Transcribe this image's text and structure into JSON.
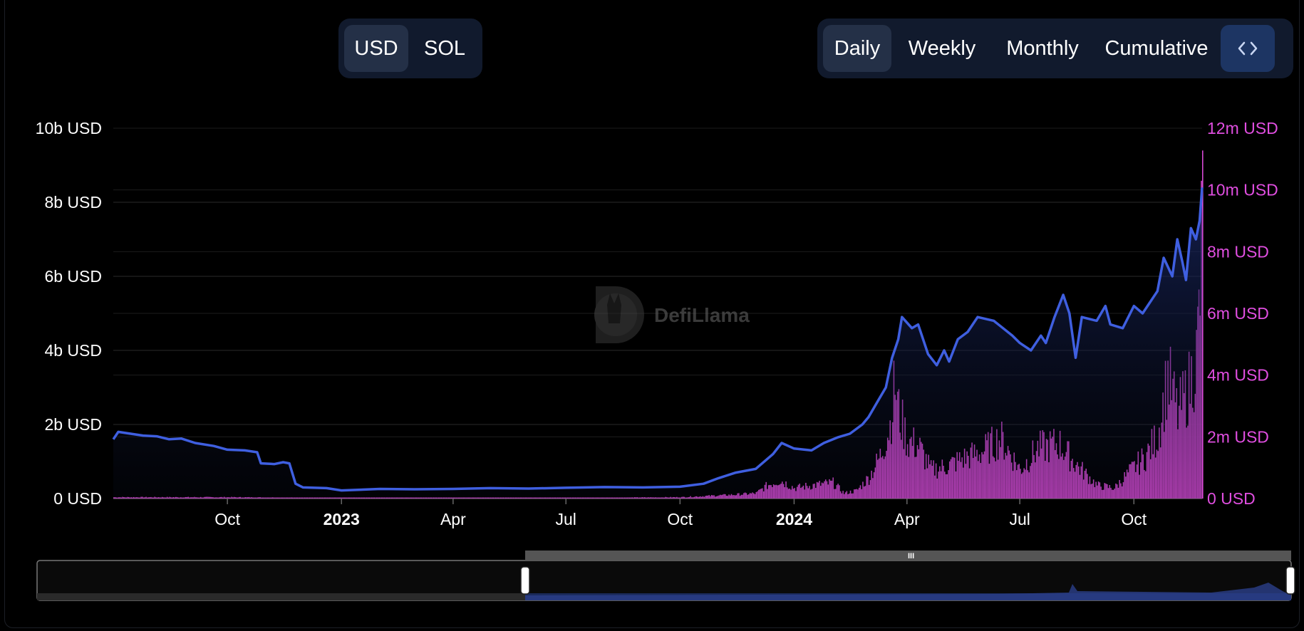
{
  "currency_toggle": {
    "options": [
      {
        "label": "USD",
        "active": true
      },
      {
        "label": "SOL",
        "active": false
      }
    ]
  },
  "period_toggle": {
    "options": [
      {
        "label": "Daily",
        "active": true
      },
      {
        "label": "Weekly",
        "active": false
      },
      {
        "label": "Monthly",
        "active": false
      },
      {
        "label": "Cumulative",
        "active": false
      }
    ],
    "embed_icon": "code-brackets-icon"
  },
  "watermark": "DefiLlama",
  "colors": {
    "background": "#000000",
    "line": "#3f5fe0",
    "bars": "#d94ad6",
    "right_axis": "#e04ee0",
    "grid": "#2a2a2a"
  },
  "chart_data": {
    "type": "line+bar",
    "title": "",
    "left_axis": {
      "ticks": [
        "0 USD",
        "2b USD",
        "4b USD",
        "6b USD",
        "8b USD",
        "10b USD"
      ],
      "ylim": [
        0,
        10000000000
      ],
      "unit": "USD"
    },
    "right_axis": {
      "ticks": [
        "0 USD",
        "2m USD",
        "4m USD",
        "6m USD",
        "8m USD",
        "10m USD",
        "12m USD"
      ],
      "ylim": [
        0,
        12000000
      ],
      "unit": "USD"
    },
    "x_axis": {
      "range": [
        "2022-07-01",
        "2024-11-25"
      ],
      "ticks": [
        {
          "label": "Oct",
          "date": "2022-10-01",
          "bold": false
        },
        {
          "label": "2023",
          "date": "2023-01-01",
          "bold": true
        },
        {
          "label": "Apr",
          "date": "2023-04-01",
          "bold": false
        },
        {
          "label": "Jul",
          "date": "2023-07-01",
          "bold": false
        },
        {
          "label": "Oct",
          "date": "2023-10-01",
          "bold": false
        },
        {
          "label": "2024",
          "date": "2024-01-01",
          "bold": true
        },
        {
          "label": "Apr",
          "date": "2024-04-01",
          "bold": false
        },
        {
          "label": "Jul",
          "date": "2024-07-01",
          "bold": false
        },
        {
          "label": "Oct",
          "date": "2024-10-01",
          "bold": false
        }
      ]
    },
    "grid": true,
    "series": [
      {
        "axis": "left",
        "kind": "line",
        "points": [
          [
            "2022-07-01",
            1600000000.0
          ],
          [
            "2022-07-05",
            1800000000.0
          ],
          [
            "2022-07-15",
            1750000000.0
          ],
          [
            "2022-07-25",
            1700000000.0
          ],
          [
            "2022-08-05",
            1680000000.0
          ],
          [
            "2022-08-15",
            1600000000.0
          ],
          [
            "2022-08-25",
            1620000000.0
          ],
          [
            "2022-09-05",
            1500000000.0
          ],
          [
            "2022-09-20",
            1420000000.0
          ],
          [
            "2022-10-01",
            1320000000.0
          ],
          [
            "2022-10-15",
            1300000000.0
          ],
          [
            "2022-10-25",
            1250000000.0
          ],
          [
            "2022-10-28",
            950000000.0
          ],
          [
            "2022-11-08",
            930000000.0
          ],
          [
            "2022-11-15",
            980000000.0
          ],
          [
            "2022-11-20",
            950000000.0
          ],
          [
            "2022-11-25",
            400000000.0
          ],
          [
            "2022-12-01",
            300000000.0
          ],
          [
            "2022-12-20",
            280000000.0
          ],
          [
            "2023-01-01",
            220000000.0
          ],
          [
            "2023-02-01",
            260000000.0
          ],
          [
            "2023-03-01",
            250000000.0
          ],
          [
            "2023-04-01",
            260000000.0
          ],
          [
            "2023-05-01",
            280000000.0
          ],
          [
            "2023-06-01",
            270000000.0
          ],
          [
            "2023-07-01",
            290000000.0
          ],
          [
            "2023-08-01",
            310000000.0
          ],
          [
            "2023-09-01",
            300000000.0
          ],
          [
            "2023-10-01",
            320000000.0
          ],
          [
            "2023-10-20",
            400000000.0
          ],
          [
            "2023-11-01",
            550000000.0
          ],
          [
            "2023-11-15",
            700000000.0
          ],
          [
            "2023-12-01",
            800000000.0
          ],
          [
            "2023-12-15",
            1200000000.0
          ],
          [
            "2023-12-22",
            1500000000.0
          ],
          [
            "2024-01-01",
            1350000000.0
          ],
          [
            "2024-01-15",
            1300000000.0
          ],
          [
            "2024-01-25",
            1500000000.0
          ],
          [
            "2024-02-05",
            1650000000.0
          ],
          [
            "2024-02-15",
            1750000000.0
          ],
          [
            "2024-02-25",
            2000000000.0
          ],
          [
            "2024-03-01",
            2200000000.0
          ],
          [
            "2024-03-08",
            2600000000.0
          ],
          [
            "2024-03-15",
            3000000000.0
          ],
          [
            "2024-03-20",
            3800000000.0
          ],
          [
            "2024-03-25",
            4300000000.0
          ],
          [
            "2024-03-28",
            4900000000.0
          ],
          [
            "2024-04-05",
            4600000000.0
          ],
          [
            "2024-04-10",
            4700000000.0
          ],
          [
            "2024-04-18",
            3900000000.0
          ],
          [
            "2024-04-25",
            3600000000.0
          ],
          [
            "2024-05-01",
            4000000000.0
          ],
          [
            "2024-05-05",
            3700000000.0
          ],
          [
            "2024-05-12",
            4300000000.0
          ],
          [
            "2024-05-20",
            4500000000.0
          ],
          [
            "2024-05-28",
            4900000000.0
          ],
          [
            "2024-06-10",
            4800000000.0
          ],
          [
            "2024-06-25",
            4400000000.0
          ],
          [
            "2024-07-01",
            4200000000.0
          ],
          [
            "2024-07-10",
            4000000000.0
          ],
          [
            "2024-07-18",
            4400000000.0
          ],
          [
            "2024-07-22",
            4200000000.0
          ],
          [
            "2024-07-29",
            4900000000.0
          ],
          [
            "2024-08-05",
            5500000000.0
          ],
          [
            "2024-08-10",
            5000000000.0
          ],
          [
            "2024-08-15",
            3800000000.0
          ],
          [
            "2024-08-20",
            4900000000.0
          ],
          [
            "2024-09-01",
            4800000000.0
          ],
          [
            "2024-09-08",
            5200000000.0
          ],
          [
            "2024-09-12",
            4700000000.0
          ],
          [
            "2024-09-22",
            4600000000.0
          ],
          [
            "2024-10-01",
            5200000000.0
          ],
          [
            "2024-10-08",
            5000000000.0
          ],
          [
            "2024-10-20",
            5600000000.0
          ],
          [
            "2024-10-25",
            6500000000.0
          ],
          [
            "2024-11-01",
            6000000000.0
          ],
          [
            "2024-11-05",
            7000000000.0
          ],
          [
            "2024-11-09",
            6400000000.0
          ],
          [
            "2024-11-12",
            5900000000.0
          ],
          [
            "2024-11-16",
            7300000000.0
          ],
          [
            "2024-11-20",
            7000000000.0
          ],
          [
            "2024-11-23",
            7500000000.0
          ],
          [
            "2024-11-25",
            8400000000.0
          ]
        ]
      },
      {
        "axis": "right",
        "kind": "bar",
        "points": [
          [
            "2022-07-01",
            50000.0
          ],
          [
            "2022-10-01",
            50000.0
          ],
          [
            "2023-01-01",
            20000.0
          ],
          [
            "2023-04-01",
            20000.0
          ],
          [
            "2023-07-01",
            20000.0
          ],
          [
            "2023-10-01",
            50000.0
          ],
          [
            "2023-11-15",
            150000.0
          ],
          [
            "2023-12-01",
            200000.0
          ],
          [
            "2023-12-10",
            500000.0
          ],
          [
            "2023-12-20",
            700000.0
          ],
          [
            "2024-01-01",
            400000.0
          ],
          [
            "2024-01-15",
            500000.0
          ],
          [
            "2024-02-01",
            600000.0
          ],
          [
            "2024-02-10",
            200000.0
          ],
          [
            "2024-02-20",
            300000.0
          ],
          [
            "2024-03-01",
            800000.0
          ],
          [
            "2024-03-10",
            1600000.0
          ],
          [
            "2024-03-18",
            2800000.0
          ],
          [
            "2024-03-22",
            4400000.0
          ],
          [
            "2024-03-25",
            3300000.0
          ],
          [
            "2024-04-01",
            2200000.0
          ],
          [
            "2024-04-10",
            2000000.0
          ],
          [
            "2024-04-20",
            1100000.0
          ],
          [
            "2024-05-01",
            1200000.0
          ],
          [
            "2024-05-15",
            1500000.0
          ],
          [
            "2024-06-01",
            1800000.0
          ],
          [
            "2024-06-15",
            2300000.0
          ],
          [
            "2024-07-01",
            1100000.0
          ],
          [
            "2024-07-15",
            1900000.0
          ],
          [
            "2024-08-01",
            2100000.0
          ],
          [
            "2024-08-15",
            1300000.0
          ],
          [
            "2024-09-01",
            500000.0
          ],
          [
            "2024-09-15",
            400000.0
          ],
          [
            "2024-10-01",
            1200000.0
          ],
          [
            "2024-10-10",
            1600000.0
          ],
          [
            "2024-10-20",
            2400000.0
          ],
          [
            "2024-10-28",
            4700000.0
          ],
          [
            "2024-11-05",
            3200000.0
          ],
          [
            "2024-11-15",
            4400000.0
          ],
          [
            "2024-11-20",
            5400000.0
          ],
          [
            "2024-11-23",
            7800000.0
          ],
          [
            "2024-11-25",
            11300000.0
          ]
        ]
      }
    ]
  },
  "range_slider": {
    "grip_label": "III"
  }
}
